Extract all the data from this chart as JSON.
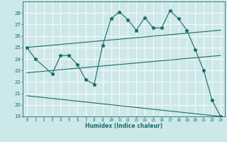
{
  "bg_color": "#cce8e8",
  "line_color": "#1a6b6b",
  "grid_color": "#ffffff",
  "xlabel": "Humidex (Indice chaleur)",
  "ylim": [
    19,
    29
  ],
  "xlim": [
    -0.5,
    23.5
  ],
  "yticks": [
    19,
    20,
    21,
    22,
    23,
    24,
    25,
    26,
    27,
    28
  ],
  "xticks": [
    0,
    1,
    2,
    3,
    4,
    5,
    6,
    7,
    8,
    9,
    10,
    11,
    12,
    13,
    14,
    15,
    16,
    17,
    18,
    19,
    20,
    21,
    22,
    23
  ],
  "series": [
    {
      "x": [
        0,
        1,
        3,
        4,
        5,
        6,
        7,
        8,
        9,
        10,
        11,
        12,
        13,
        14,
        15,
        16,
        17,
        18,
        19,
        20,
        21,
        22,
        23
      ],
      "y": [
        25.0,
        24.0,
        22.7,
        24.3,
        24.3,
        23.5,
        22.2,
        21.8,
        25.2,
        27.5,
        28.1,
        27.4,
        26.5,
        27.6,
        26.7,
        26.7,
        28.2,
        27.5,
        26.5,
        24.8,
        23.0,
        20.4,
        19.0
      ],
      "marker": "*",
      "markersize": 3.5,
      "linewidth": 0.8
    },
    {
      "x": [
        0,
        23
      ],
      "y": [
        25.0,
        26.5
      ],
      "marker": null,
      "linewidth": 0.8
    },
    {
      "x": [
        0,
        23
      ],
      "y": [
        22.8,
        24.3
      ],
      "marker": null,
      "linewidth": 0.8
    },
    {
      "x": [
        0,
        23
      ],
      "y": [
        20.8,
        19.0
      ],
      "marker": null,
      "linewidth": 0.8
    }
  ]
}
